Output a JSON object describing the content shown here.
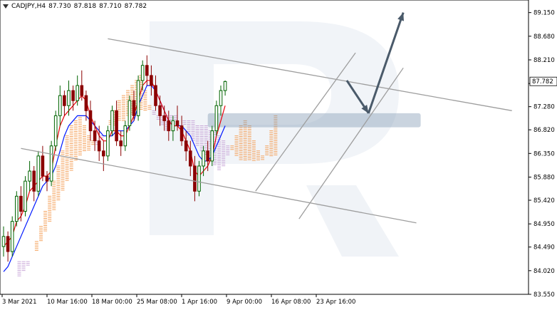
{
  "header": {
    "symbol": "CADJPY,H4",
    "open": "87.730",
    "high": "87.818",
    "low": "87.710",
    "close": "87.782"
  },
  "colors": {
    "bull_candle": "#006400",
    "bear_candle": "#8b0000",
    "tenkan": "#e8000a",
    "kijun": "#0018ff",
    "cloud_bull": "#f4a460",
    "cloud_bear": "#c9a8d8",
    "channel": "#9e9e9e",
    "arrow": "#4a5a6a",
    "zone": "#8aa0b8",
    "price_label_bg": "#ffffff"
  },
  "chart_data": {
    "type": "candlestick",
    "title": "",
    "ylim": [
      83.55,
      89.4
    ],
    "y_ticks": [
      "89.150",
      "88.680",
      "88.210",
      "87.740",
      "87.280",
      "86.820",
      "86.350",
      "85.880",
      "85.420",
      "84.950",
      "84.490",
      "84.020",
      "83.550"
    ],
    "x_ticks": [
      "3 Mar 2021",
      "10 Mar 16:00",
      "18 Mar 00:00",
      "25 Mar 08:00",
      "1 Apr 16:00",
      "9 Apr 00:00",
      "16 Apr 08:00",
      "23 Apr 16:00"
    ],
    "current_price": "87.782",
    "candles": [
      [
        84.5,
        84.9,
        84.3,
        84.7
      ],
      [
        84.7,
        84.8,
        84.2,
        84.4
      ],
      [
        84.4,
        85.1,
        84.3,
        85.0
      ],
      [
        85.0,
        85.6,
        84.9,
        85.5
      ],
      [
        85.5,
        85.7,
        85.0,
        85.2
      ],
      [
        85.2,
        85.9,
        85.1,
        85.8
      ],
      [
        85.8,
        86.2,
        85.6,
        86.0
      ],
      [
        86.0,
        86.1,
        85.4,
        85.6
      ],
      [
        85.6,
        86.4,
        85.5,
        86.3
      ],
      [
        86.3,
        86.5,
        85.8,
        85.9
      ],
      [
        85.9,
        86.0,
        85.6,
        85.8
      ],
      [
        85.8,
        86.6,
        85.7,
        86.5
      ],
      [
        86.5,
        87.2,
        86.4,
        87.1
      ],
      [
        87.1,
        87.7,
        86.9,
        87.5
      ],
      [
        87.5,
        87.6,
        87.1,
        87.3
      ],
      [
        87.3,
        87.8,
        87.1,
        87.6
      ],
      [
        87.6,
        87.7,
        87.2,
        87.4
      ],
      [
        87.4,
        87.9,
        87.3,
        87.7
      ],
      [
        87.7,
        88.0,
        87.4,
        87.5
      ],
      [
        87.5,
        87.6,
        87.0,
        87.2
      ],
      [
        87.2,
        87.4,
        86.6,
        86.8
      ],
      [
        86.8,
        87.0,
        86.4,
        86.6
      ],
      [
        86.6,
        86.9,
        86.2,
        86.4
      ],
      [
        86.4,
        86.6,
        86.0,
        86.3
      ],
      [
        86.3,
        86.9,
        86.2,
        86.8
      ],
      [
        86.8,
        87.3,
        86.7,
        87.2
      ],
      [
        87.2,
        87.4,
        86.5,
        86.6
      ],
      [
        86.6,
        86.8,
        86.3,
        86.5
      ],
      [
        86.5,
        87.0,
        86.4,
        86.9
      ],
      [
        86.9,
        87.5,
        86.8,
        87.4
      ],
      [
        87.4,
        87.6,
        87.0,
        87.1
      ],
      [
        87.1,
        87.9,
        87.0,
        87.8
      ],
      [
        87.8,
        88.2,
        87.6,
        88.1
      ],
      [
        88.1,
        88.3,
        87.7,
        87.9
      ],
      [
        87.9,
        88.1,
        87.5,
        87.7
      ],
      [
        87.7,
        87.9,
        87.2,
        87.3
      ],
      [
        87.3,
        87.5,
        86.9,
        87.1
      ],
      [
        87.1,
        87.3,
        86.8,
        87.0
      ],
      [
        87.0,
        87.2,
        86.6,
        86.8
      ],
      [
        86.8,
        87.1,
        86.6,
        87.0
      ],
      [
        87.0,
        87.3,
        86.8,
        86.9
      ],
      [
        86.9,
        87.1,
        86.5,
        86.6
      ],
      [
        86.6,
        86.8,
        86.2,
        86.4
      ],
      [
        86.4,
        86.6,
        85.9,
        86.1
      ],
      [
        86.1,
        86.3,
        85.4,
        85.6
      ],
      [
        85.6,
        86.2,
        85.5,
        86.1
      ],
      [
        86.1,
        86.5,
        85.9,
        86.4
      ],
      [
        86.4,
        86.6,
        86.0,
        86.2
      ],
      [
        86.2,
        86.9,
        86.1,
        86.8
      ],
      [
        86.8,
        87.4,
        86.7,
        87.3
      ],
      [
        87.3,
        87.7,
        87.1,
        87.6
      ],
      [
        87.6,
        87.8,
        87.5,
        87.78
      ]
    ],
    "tenkan": [
      84.5,
      84.6,
      84.7,
      85.0,
      85.1,
      85.3,
      85.6,
      85.7,
      85.8,
      85.9,
      85.9,
      86.0,
      86.5,
      86.9,
      87.1,
      87.2,
      87.3,
      87.4,
      87.5,
      87.4,
      87.1,
      86.9,
      86.7,
      86.6,
      86.6,
      86.8,
      86.8,
      86.7,
      86.7,
      86.9,
      87.1,
      87.4,
      87.7,
      87.8,
      87.8,
      87.6,
      87.4,
      87.2,
      87.0,
      86.9,
      86.9,
      86.8,
      86.6,
      86.4,
      86.0,
      85.9,
      86.0,
      86.1,
      86.3,
      86.7,
      87.0,
      87.3
    ],
    "kijun": [
      84.0,
      84.1,
      84.3,
      84.5,
      84.7,
      84.9,
      85.1,
      85.3,
      85.5,
      85.7,
      85.8,
      85.9,
      86.1,
      86.4,
      86.7,
      86.9,
      87.0,
      87.1,
      87.1,
      87.1,
      87.0,
      86.9,
      86.8,
      86.7,
      86.7,
      86.7,
      86.8,
      86.8,
      86.8,
      86.9,
      87.0,
      87.3,
      87.5,
      87.7,
      87.7,
      87.6,
      87.4,
      87.2,
      87.0,
      86.9,
      86.9,
      86.9,
      86.8,
      86.7,
      86.5,
      86.3,
      86.2,
      86.2,
      86.3,
      86.5,
      86.7,
      86.9
    ],
    "senkou_a": [
      83.9,
      84.0,
      84.1,
      84.3,
      84.6,
      84.9,
      85.2,
      85.5,
      85.8,
      86.1,
      86.4,
      86.7,
      86.9,
      87.0,
      87.1,
      86.9,
      86.7,
      86.6,
      86.5,
      86.6,
      86.8,
      87.0,
      87.2,
      87.4,
      87.5,
      87.6,
      87.7,
      87.8,
      87.9,
      87.6,
      87.3,
      87.1,
      87.0,
      86.9,
      86.8,
      86.9,
      87.0,
      87.0,
      86.9,
      86.7,
      86.6,
      86.5,
      86.4,
      86.3,
      86.2,
      86.1,
      86.0,
      86.1,
      86.3,
      86.5,
      86.7,
      86.9,
      87.0,
      86.9,
      86.6,
      86.4,
      86.3,
      86.5,
      86.8,
      87.1
    ],
    "senkou_b": [
      84.2,
      84.2,
      84.2,
      84.3,
      84.4,
      84.6,
      84.8,
      85.0,
      85.2,
      85.4,
      85.6,
      85.8,
      86.0,
      86.2,
      86.3,
      86.4,
      86.4,
      86.5,
      86.6,
      86.7,
      86.8,
      86.9,
      86.9,
      87.0,
      87.0,
      87.1,
      87.1,
      87.2,
      87.2,
      87.2,
      87.2,
      87.2,
      87.1,
      87.1,
      87.1,
      87.1,
      87.1,
      87.0,
      87.0,
      87.0,
      87.0,
      86.9,
      86.9,
      86.9,
      86.8,
      86.8,
      86.7,
      86.6,
      86.5,
      86.4,
      86.3,
      86.2,
      86.2,
      86.2,
      86.2,
      86.2,
      86.2,
      86.3,
      86.3,
      86.3
    ],
    "channel_lines": [
      {
        "name": "upper-trendline",
        "p1": [
          24,
          88.63
        ],
        "p2": [
          117,
          87.2
        ]
      },
      {
        "name": "lower-trendline",
        "p1": [
          4,
          86.45
        ],
        "p2": [
          95,
          84.97
        ]
      },
      {
        "name": "rising-channel-upper",
        "p1": [
          58,
          85.6
        ],
        "p2": [
          81,
          88.35
        ]
      },
      {
        "name": "rising-channel-lower",
        "p1": [
          68,
          85.05
        ],
        "p2": [
          92,
          88.05
        ]
      }
    ],
    "forecast_path": [
      [
        79,
        87.8
      ],
      [
        84,
        87.15
      ],
      [
        92,
        89.15
      ]
    ],
    "resistance_zone": {
      "x_from": 47,
      "x_to": 96,
      "y_low": 86.87,
      "y_high": 87.15
    }
  }
}
